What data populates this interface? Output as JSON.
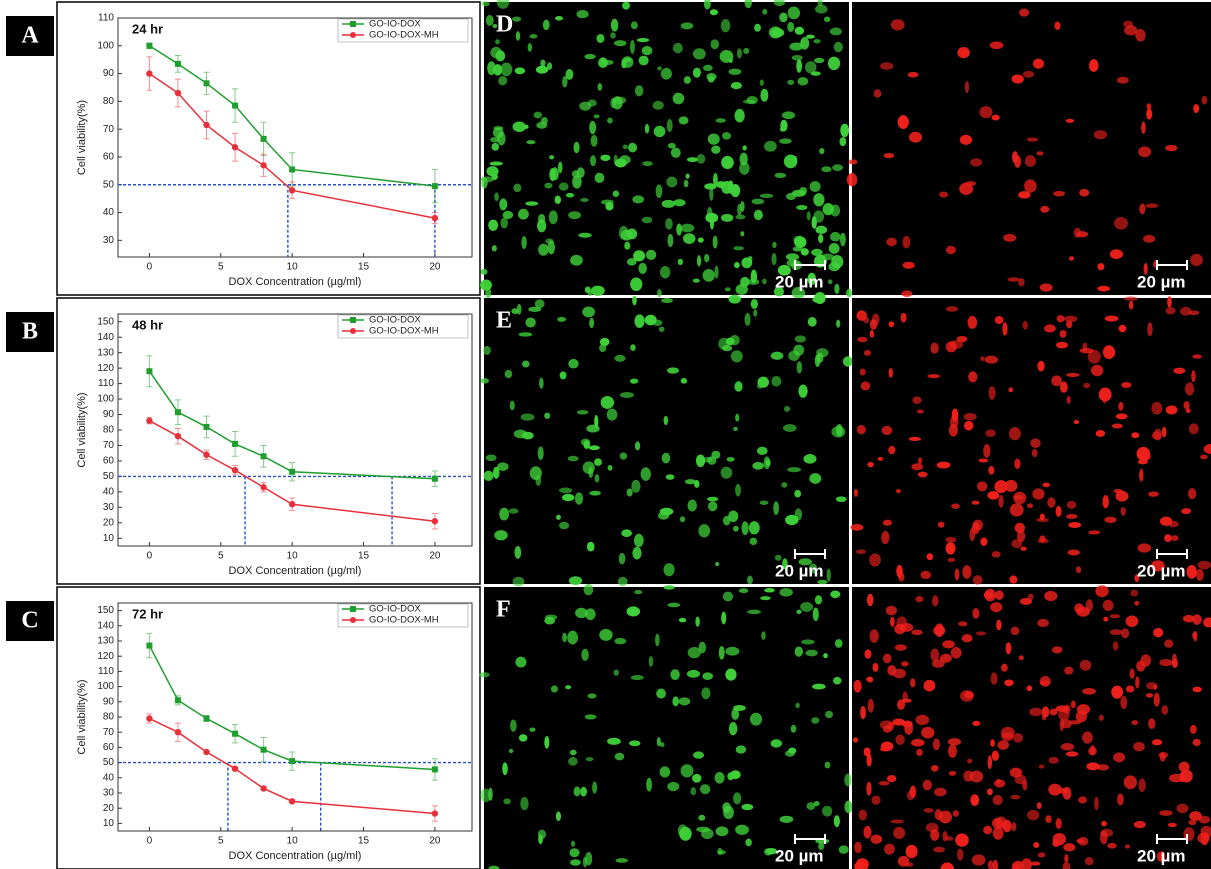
{
  "chart_data": [
    {
      "type": "line",
      "panel": "A",
      "label": "24 hr",
      "ylabel": "Cell viability(%)",
      "xlabel": "DOX Concentration (µg/ml)",
      "x": [
        0,
        2,
        4,
        6,
        8,
        10,
        20
      ],
      "xlim": [
        -2.2,
        22.6
      ],
      "xticks": [
        0,
        5,
        10,
        15,
        20
      ],
      "ylim": [
        24,
        110
      ],
      "yticks": [
        30,
        40,
        50,
        60,
        70,
        80,
        90,
        100,
        110
      ],
      "grid": false,
      "legend": "top-right",
      "series": [
        {
          "name": "GO-IO-DOX",
          "color": "#1f9e2e",
          "marker": "square",
          "values": [
            100,
            93.5,
            86.5,
            78.5,
            66.5,
            55.5,
            49.5
          ],
          "errors": [
            1,
            3,
            4,
            6,
            6,
            6,
            6
          ]
        },
        {
          "name": "GO-IO-DOX-MH",
          "color": "#e8303a",
          "marker": "circle",
          "values": [
            90,
            83,
            71.5,
            63.5,
            57,
            48,
            38
          ],
          "errors": [
            6,
            5,
            5,
            5,
            4,
            3,
            2
          ]
        }
      ],
      "ref_lines": {
        "y": 50,
        "x": [
          9.7,
          20
        ],
        "color": "#2450d0"
      }
    },
    {
      "type": "line",
      "panel": "B",
      "label": "48 hr",
      "ylabel": "Cell viability(%)",
      "xlabel": "DOX Concentration (µg/ml)",
      "x": [
        0,
        2,
        4,
        6,
        8,
        10,
        20
      ],
      "xlim": [
        -2.2,
        22.6
      ],
      "xticks": [
        0,
        5,
        10,
        15,
        20
      ],
      "ylim": [
        5,
        155
      ],
      "yticks": [
        10,
        20,
        30,
        40,
        50,
        60,
        70,
        80,
        90,
        100,
        110,
        120,
        130,
        140,
        150
      ],
      "grid": false,
      "legend": "top-right",
      "series": [
        {
          "name": "GO-IO-DOX",
          "color": "#1f9e2e",
          "marker": "square",
          "values": [
            118,
            91.5,
            82,
            71,
            63,
            53,
            48.5
          ],
          "errors": [
            10,
            8,
            7,
            8,
            7,
            6,
            5
          ]
        },
        {
          "name": "GO-IO-DOX-MH",
          "color": "#e8303a",
          "marker": "circle",
          "values": [
            86,
            76,
            64,
            54,
            43,
            32,
            21
          ],
          "errors": [
            2,
            5,
            3,
            3,
            3,
            4,
            5
          ]
        }
      ],
      "ref_lines": {
        "y": 50,
        "x": [
          6.7,
          17
        ],
        "color": "#2450d0"
      }
    },
    {
      "type": "line",
      "panel": "C",
      "label": "72 hr",
      "ylabel": "Cell viability(%)",
      "xlabel": "DOX Concentration (µg/ml)",
      "x": [
        0,
        2,
        4,
        6,
        8,
        10,
        20
      ],
      "xlim": [
        -2.2,
        22.6
      ],
      "xticks": [
        0,
        5,
        10,
        15,
        20
      ],
      "ylim": [
        5,
        155
      ],
      "yticks": [
        10,
        20,
        30,
        40,
        50,
        60,
        70,
        80,
        90,
        100,
        110,
        120,
        130,
        140,
        150
      ],
      "grid": false,
      "legend": "top-right",
      "series": [
        {
          "name": "GO-IO-DOX",
          "color": "#1f9e2e",
          "marker": "square",
          "values": [
            127,
            91,
            79,
            69,
            58.5,
            51,
            45.5
          ],
          "errors": [
            8,
            3,
            2,
            6,
            8,
            6,
            7
          ]
        },
        {
          "name": "GO-IO-DOX-MH",
          "color": "#e8303a",
          "marker": "circle",
          "values": [
            79,
            70,
            57,
            46,
            33,
            24.5,
            16.5
          ],
          "errors": [
            3,
            6,
            1,
            1,
            1,
            1,
            5
          ]
        }
      ],
      "ref_lines": {
        "y": 50,
        "x": [
          5.5,
          12
        ],
        "color": "#2450d0"
      }
    }
  ],
  "images": [
    {
      "panel": "D",
      "scale_left": "20 µm",
      "scale_right": "20 µm"
    },
    {
      "panel": "E",
      "scale_left": "20 µm",
      "scale_right": "20 µm"
    },
    {
      "panel": "F",
      "scale_left": "20 µm",
      "scale_right": "20 µm"
    }
  ]
}
